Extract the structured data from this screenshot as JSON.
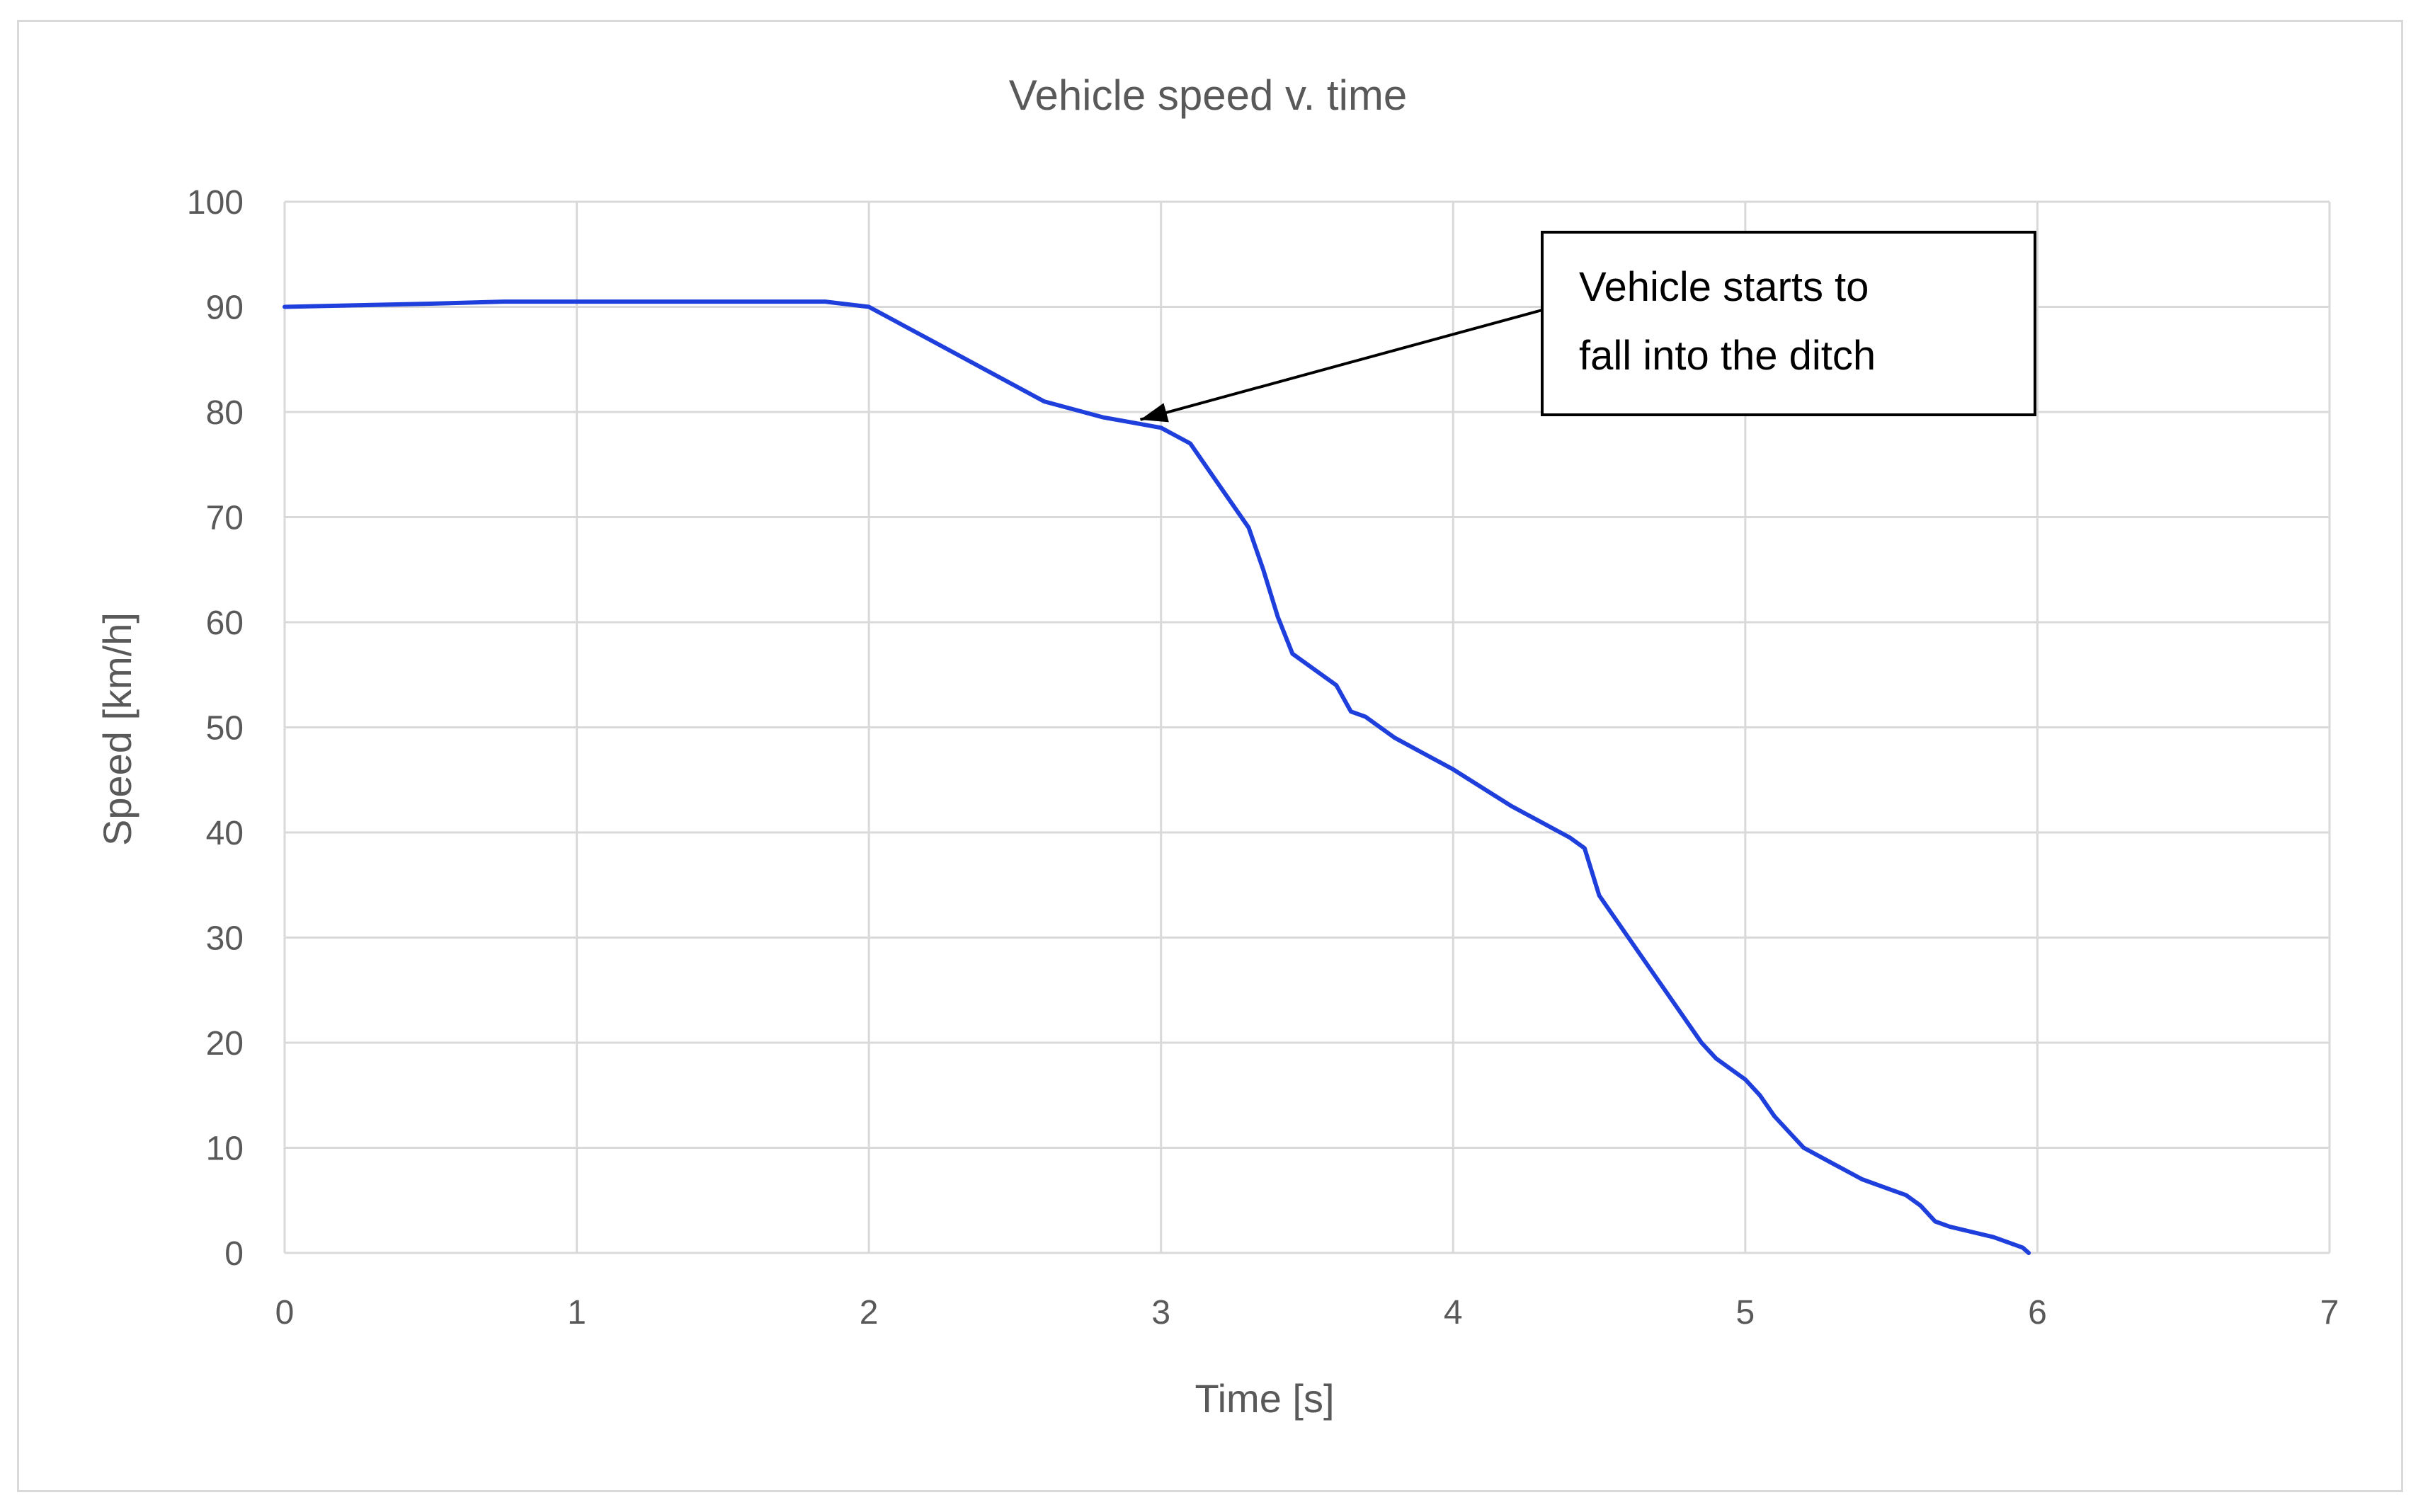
{
  "chart_data": {
    "type": "line",
    "title": "Vehicle speed v. time",
    "xlabel": "Time [s]",
    "ylabel": "Speed [km/h]",
    "xlim": [
      0,
      7
    ],
    "ylim": [
      0,
      100
    ],
    "x_ticks": [
      "0",
      "1",
      "2",
      "3",
      "4",
      "5",
      "6",
      "7"
    ],
    "y_ticks": [
      "0",
      "10",
      "20",
      "30",
      "40",
      "50",
      "60",
      "70",
      "80",
      "90",
      "100"
    ],
    "grid": true,
    "legend": "none",
    "colors": {
      "line": "#1f3fdd",
      "grid": "#d9d9d9",
      "text": "#595959"
    },
    "series": [
      {
        "x": [
          0,
          0.5,
          0.75,
          1.0,
          1.5,
          1.85,
          2.0,
          2.2,
          2.4,
          2.6,
          2.8,
          2.9,
          3.0,
          3.1,
          3.2,
          3.3,
          3.35,
          3.4,
          3.45,
          3.55,
          3.6,
          3.65,
          3.7,
          3.8,
          3.9,
          4.0,
          4.2,
          4.4,
          4.45,
          4.5,
          4.55,
          4.7,
          4.85,
          4.9,
          5.0,
          5.05,
          5.1,
          5.2,
          5.3,
          5.4,
          5.5,
          5.55,
          5.6,
          5.65,
          5.7,
          5.85,
          5.95,
          5.97
        ],
        "values": [
          90,
          90.3,
          90.5,
          90.5,
          90.5,
          90.5,
          90,
          87,
          84,
          81,
          79.5,
          79,
          78.5,
          77,
          73,
          69,
          65,
          60.5,
          57,
          55,
          54,
          51.5,
          51,
          49,
          47.5,
          46,
          42.5,
          39.5,
          38.5,
          34,
          32,
          26,
          20,
          18.5,
          16.5,
          15,
          13,
          10,
          8.5,
          7,
          6,
          5.5,
          4.5,
          3,
          2.5,
          1.5,
          0.5,
          0
        ]
      }
    ],
    "annotation": {
      "text_lines": [
        "Vehicle starts to",
        "fall into the ditch"
      ],
      "target": {
        "x": 2.9,
        "y": 79
      }
    }
  }
}
